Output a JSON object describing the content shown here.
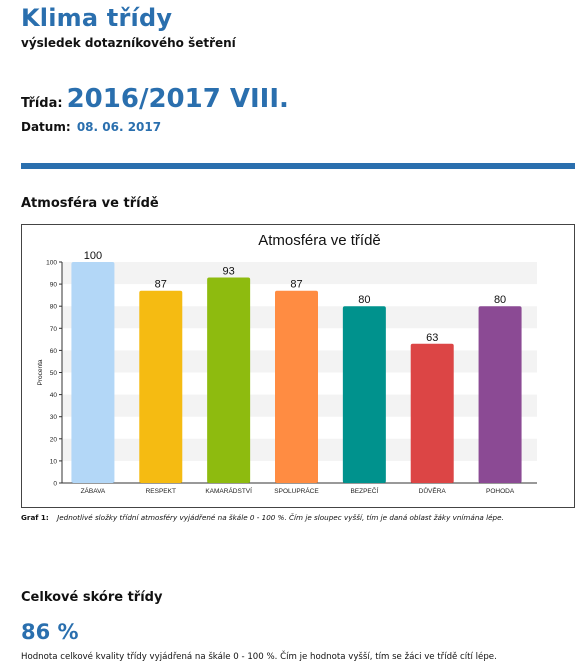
{
  "header": {
    "title": "Klima třídy",
    "subtitle": "výsledek dotazníkového šetření"
  },
  "info": {
    "class_label": "Třída:",
    "class_value": "2016/2017 VIII.",
    "date_label": "Datum:",
    "date_value": "08. 06. 2017"
  },
  "section1": {
    "heading": "Atmosféra ve třídě",
    "caption_label": "Graf 1:",
    "caption_text": "Jednotlivé složky třídní atmosféry vyjádřené na škále 0 - 100 %. Čím je sloupec vyšší, tím je daná oblast žáky vnímána lépe."
  },
  "section2": {
    "heading": "Celkové skóre třídy",
    "score": "86 %",
    "description": "Hodnota celkové kvality třídy vyjádřená na škále 0 - 100 %. Čím je hodnota vyšší, tím se žáci ve třídě cítí lépe."
  },
  "chart_data": {
    "type": "bar",
    "title": "Atmosféra ve třídě",
    "xlabel": "",
    "ylabel": "Procenta",
    "ylim": [
      0,
      100
    ],
    "yticks": [
      0,
      10,
      20,
      30,
      40,
      50,
      60,
      70,
      80,
      90,
      100
    ],
    "categories": [
      "ZÁBAVA",
      "RESPEKT",
      "KAMARÁDSTVÍ",
      "SPOLUPRÁCE",
      "BEZPEČÍ",
      "DŮVĚRA",
      "POHODA"
    ],
    "values": [
      100,
      87,
      93,
      87,
      80,
      63,
      80
    ],
    "colors": [
      "#b3d7f7",
      "#f5bb12",
      "#8ebb0f",
      "#ff8c42",
      "#00928d",
      "#dc4545",
      "#8b4a94"
    ],
    "grid": "horizontal-bands",
    "legend": "none"
  }
}
